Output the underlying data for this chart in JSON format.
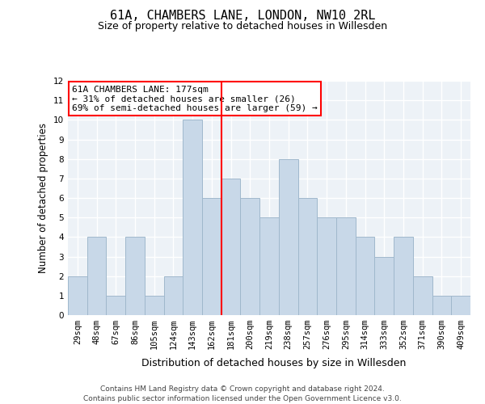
{
  "title1": "61A, CHAMBERS LANE, LONDON, NW10 2RL",
  "title2": "Size of property relative to detached houses in Willesden",
  "xlabel": "Distribution of detached houses by size in Willesden",
  "ylabel": "Number of detached properties",
  "categories": [
    "29sqm",
    "48sqm",
    "67sqm",
    "86sqm",
    "105sqm",
    "124sqm",
    "143sqm",
    "162sqm",
    "181sqm",
    "200sqm",
    "219sqm",
    "238sqm",
    "257sqm",
    "276sqm",
    "295sqm",
    "314sqm",
    "333sqm",
    "352sqm",
    "371sqm",
    "390sqm",
    "409sqm"
  ],
  "values": [
    2,
    4,
    1,
    4,
    1,
    2,
    10,
    6,
    7,
    6,
    5,
    8,
    6,
    5,
    5,
    4,
    3,
    4,
    2,
    1,
    1
  ],
  "bar_color": "#c8d8e8",
  "bar_edge_color": "#a0b8cc",
  "vline_color": "red",
  "annotation_text": "61A CHAMBERS LANE: 177sqm\n← 31% of detached houses are smaller (26)\n69% of semi-detached houses are larger (59) →",
  "annotation_box_color": "white",
  "annotation_box_edge_color": "red",
  "ylim": [
    0,
    12
  ],
  "yticks": [
    0,
    1,
    2,
    3,
    4,
    5,
    6,
    7,
    8,
    9,
    10,
    11,
    12
  ],
  "footer_text": "Contains HM Land Registry data © Crown copyright and database right 2024.\nContains public sector information licensed under the Open Government Licence v3.0.",
  "bg_color": "#edf2f7",
  "grid_color": "white",
  "title1_fontsize": 11,
  "title2_fontsize": 9,
  "ylabel_fontsize": 8.5,
  "xlabel_fontsize": 9,
  "tick_fontsize": 7.5,
  "annotation_fontsize": 8,
  "footer_fontsize": 6.5
}
